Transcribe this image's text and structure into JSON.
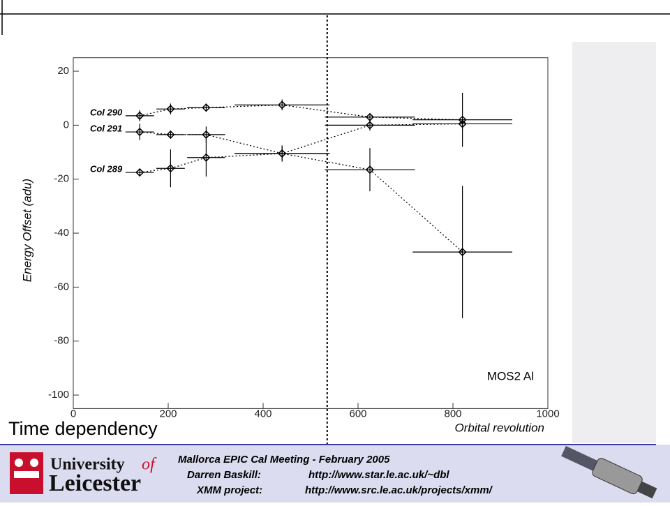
{
  "title": "Time dependency",
  "chart_data": {
    "type": "scatter",
    "xlabel": "Orbital revolution",
    "ylabel": "Energy Offset (adu)",
    "annotation": "MOS2 Al",
    "xlim": [
      0,
      1000
    ],
    "ylim": [
      -105,
      25
    ],
    "xticks": [
      0,
      200,
      400,
      600,
      800,
      1000
    ],
    "yticks": [
      -100,
      -80,
      -60,
      -40,
      -20,
      0,
      20
    ],
    "vline": 535,
    "x": [
      140,
      205,
      280,
      440,
      625,
      820
    ],
    "xerr": [
      30,
      30,
      40,
      100,
      95,
      105
    ],
    "series": [
      {
        "name": "Col 290",
        "color": "#000000",
        "values": [
          3.5,
          6,
          6.5,
          7.5,
          3,
          2
        ],
        "yerr": [
          2,
          2,
          1.5,
          2,
          1,
          10
        ]
      },
      {
        "name": "Col 291",
        "color": "#000000",
        "values": [
          -2.5,
          -3.5,
          -3.5,
          -10.5,
          -16.5,
          -47
        ],
        "yerr": [
          3,
          1.5,
          3,
          3,
          8,
          24.5
        ]
      },
      {
        "name": "Col 289",
        "color": "#000000",
        "values": [
          -17.5,
          -16,
          -12,
          -10.5,
          0,
          0.5
        ],
        "yerr": [
          1.5,
          7,
          7,
          2.5,
          2,
          2
        ]
      }
    ]
  },
  "footer": {
    "meeting": "Mallorca EPIC Cal Meeting - February 2005",
    "name": "Darren Baskill:",
    "name_url": "http://www.star.le.ac.uk/~dbl",
    "project": "XMM project:",
    "project_url": "http://www.src.le.ac.uk/projects/xmm/"
  },
  "logo": {
    "line1": "University",
    "of": "of",
    "line2": "Leicester"
  }
}
